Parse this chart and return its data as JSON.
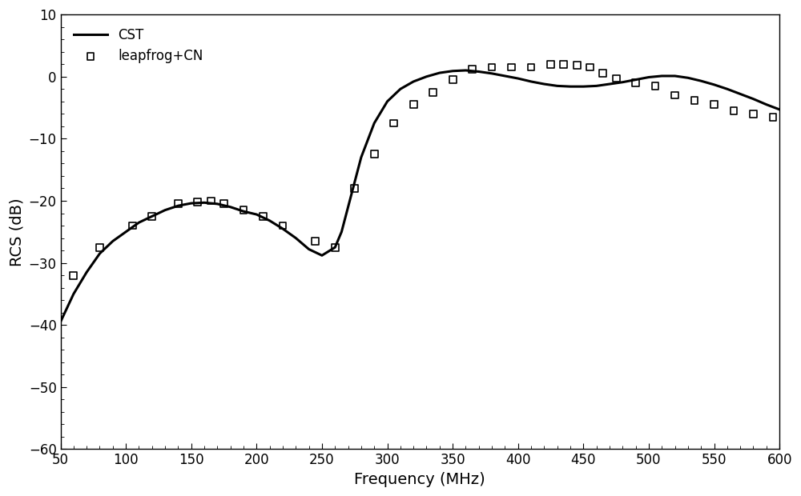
{
  "title": "",
  "xlabel": "Frequency (MHz)",
  "ylabel": "RCS (dB)",
  "xlim": [
    50,
    600
  ],
  "ylim": [
    -60,
    10
  ],
  "xticks": [
    50,
    100,
    150,
    200,
    250,
    300,
    350,
    400,
    450,
    500,
    550,
    600
  ],
  "yticks": [
    -60,
    -50,
    -40,
    -30,
    -20,
    -10,
    0,
    10
  ],
  "background_color": "#ffffff",
  "line_color": "#000000",
  "scatter_color": "#000000",
  "line_width": 2.2,
  "scatter_marker": "s",
  "scatter_size": 40,
  "scatter_facecolor": "none",
  "legend_cst": "CST",
  "legend_scatter": "leapfrog+CN",
  "cst_x": [
    50,
    60,
    70,
    80,
    90,
    100,
    110,
    120,
    130,
    140,
    150,
    160,
    170,
    180,
    190,
    200,
    210,
    220,
    230,
    240,
    250,
    260,
    265,
    270,
    275,
    280,
    290,
    300,
    310,
    320,
    330,
    340,
    350,
    360,
    370,
    380,
    390,
    400,
    410,
    420,
    430,
    440,
    450,
    460,
    470,
    480,
    490,
    500,
    510,
    520,
    530,
    540,
    550,
    560,
    570,
    580,
    590,
    600
  ],
  "cst_y": [
    -39.5,
    -35.0,
    -31.5,
    -28.5,
    -26.5,
    -25.0,
    -23.5,
    -22.5,
    -21.5,
    -20.8,
    -20.4,
    -20.3,
    -20.5,
    -21.0,
    -21.7,
    -22.2,
    -23.2,
    -24.5,
    -26.0,
    -27.8,
    -28.8,
    -27.5,
    -25.0,
    -21.0,
    -17.0,
    -13.0,
    -7.5,
    -4.0,
    -2.0,
    -0.8,
    0.0,
    0.6,
    0.9,
    1.0,
    0.8,
    0.5,
    0.1,
    -0.3,
    -0.8,
    -1.2,
    -1.5,
    -1.6,
    -1.6,
    -1.5,
    -1.2,
    -0.9,
    -0.5,
    -0.1,
    0.1,
    0.1,
    -0.2,
    -0.7,
    -1.3,
    -2.0,
    -2.8,
    -3.6,
    -4.5,
    -5.3
  ],
  "scatter_x": [
    60,
    80,
    105,
    120,
    140,
    155,
    165,
    175,
    190,
    205,
    220,
    245,
    260,
    275,
    290,
    305,
    320,
    335,
    350,
    365,
    380,
    395,
    410,
    425,
    435,
    445,
    455,
    465,
    475,
    490,
    505,
    520,
    535,
    550,
    565,
    580,
    595
  ],
  "scatter_y": [
    -32.0,
    -27.5,
    -24.0,
    -22.5,
    -20.5,
    -20.2,
    -20.0,
    -20.5,
    -21.5,
    -22.5,
    -24.0,
    -26.5,
    -27.5,
    -18.0,
    -12.5,
    -7.5,
    -4.5,
    -2.5,
    -0.5,
    1.2,
    1.5,
    1.5,
    1.5,
    2.0,
    2.0,
    1.8,
    1.5,
    0.5,
    -0.3,
    -1.0,
    -1.5,
    -3.0,
    -3.8,
    -4.5,
    -5.5,
    -6.0,
    -6.5
  ]
}
